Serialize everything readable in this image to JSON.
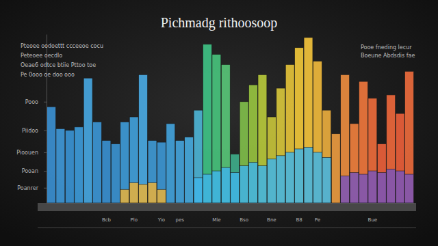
{
  "chart_data": {
    "type": "bar",
    "title": "Pichmadg rithoosoop",
    "annotations": [
      "Pteoee oodoettt ccceeoe cocu",
      "Peteoee oecdlo",
      "Oeae6 odtce btiie Pttoo toe",
      "Pe 0ooo oe doo ooo",
      "Pooe fneding lecur",
      "Boeune Abdsdis fae"
    ],
    "categories": [
      null,
      null,
      null,
      null,
      null,
      null,
      "Bcb",
      null,
      null,
      "Plo",
      null,
      null,
      "Yio",
      null,
      "pes",
      null,
      null,
      null,
      "Mle",
      null,
      null,
      "Bso",
      null,
      null,
      "Bne",
      null,
      null,
      "B8",
      null,
      "Pe",
      null,
      null,
      null,
      null,
      null,
      "Bue",
      null,
      null,
      null,
      null
    ],
    "series": [
      {
        "values": [
          57,
          44,
          43,
          45,
          74,
          48,
          37,
          35,
          48,
          51,
          76,
          37,
          36,
          47,
          37,
          39,
          55,
          94,
          88,
          82,
          29,
          60,
          70,
          76,
          51,
          68,
          82,
          92,
          98,
          84,
          55,
          41,
          76,
          47,
          72,
          62,
          35,
          64,
          53,
          78
        ],
        "colors": [
          "#3b8fd0",
          "#3f97d6",
          "#3a92d3",
          "#3d9ad8",
          "#46a6e0",
          "#3c95d4",
          "#3a8fcf",
          "#3b92d0",
          "#3e9ad6",
          "#41a0da",
          "#4aa9e2",
          "#3f99d4",
          "#3d96d2",
          "#42a1d9",
          "#44a3da",
          "#47a9dc",
          "#4db3d4",
          "#3fc184",
          "#48c27c",
          "#58c477",
          "#3fae8a",
          "#7fbd4a",
          "#97c23f",
          "#b6c83b",
          "#c6c23a",
          "#d6c43b",
          "#e4c23a",
          "#f0c73a",
          "#f2c23c",
          "#efb83c",
          "#e9ad3e",
          "#e99a40",
          "#ec8c3f",
          "#ee7f3d",
          "#ee763c",
          "#ec6b3b",
          "#e9603a",
          "#ec673b",
          "#e95e3a",
          "#ea6a3c"
        ]
      },
      {
        "values": [
          null,
          null,
          null,
          null,
          null,
          null,
          null,
          null,
          8,
          12,
          11,
          12,
          8,
          null,
          null,
          null,
          15,
          17,
          19,
          21,
          18,
          22,
          24,
          22,
          26,
          28,
          30,
          32,
          33,
          30,
          27,
          null,
          16,
          18,
          17,
          19,
          18,
          20,
          19,
          17
        ],
        "colors": [
          "#e9b23a",
          "#e9b23a",
          "#e9b23a",
          "#e9b23a",
          "#e9b23a",
          "#e9b23a",
          "#e9b23a",
          "#e9b23a",
          "#e9b23a",
          "#e9b23a",
          "#e9b23a",
          "#e9b23a",
          "#e9b23a",
          "#e9b23a",
          "#e9b23a",
          "#e9b23a",
          "#3fb4e6",
          "#3fb4e6",
          "#3fb4e6",
          "#3fb4e6",
          "#3fb4e6",
          "#3fb4e6",
          "#3fb4e6",
          "#3fb4e6",
          "#3fb4e6",
          "#3fb4e6",
          "#3fb4e6",
          "#3fb4e6",
          "#3fb4e6",
          "#3fb4e6",
          "#3fb4e6",
          "#7a55b8",
          "#7a55b8",
          "#7a55b8",
          "#7a55b8",
          "#7a55b8",
          "#7a55b8",
          "#7a55b8",
          "#7a55b8",
          "#7a55b8"
        ]
      }
    ],
    "ylim": [
      0,
      100
    ],
    "yticks": [
      {
        "value": 9,
        "label": "Poanrer"
      },
      {
        "value": 19,
        "label": "Pooan"
      },
      {
        "value": 30,
        "label": "Pioouen"
      },
      {
        "value": 43,
        "label": "Piidoo"
      },
      {
        "value": 60,
        "label": "Pooo"
      }
    ],
    "grid": false,
    "stacked": false
  }
}
